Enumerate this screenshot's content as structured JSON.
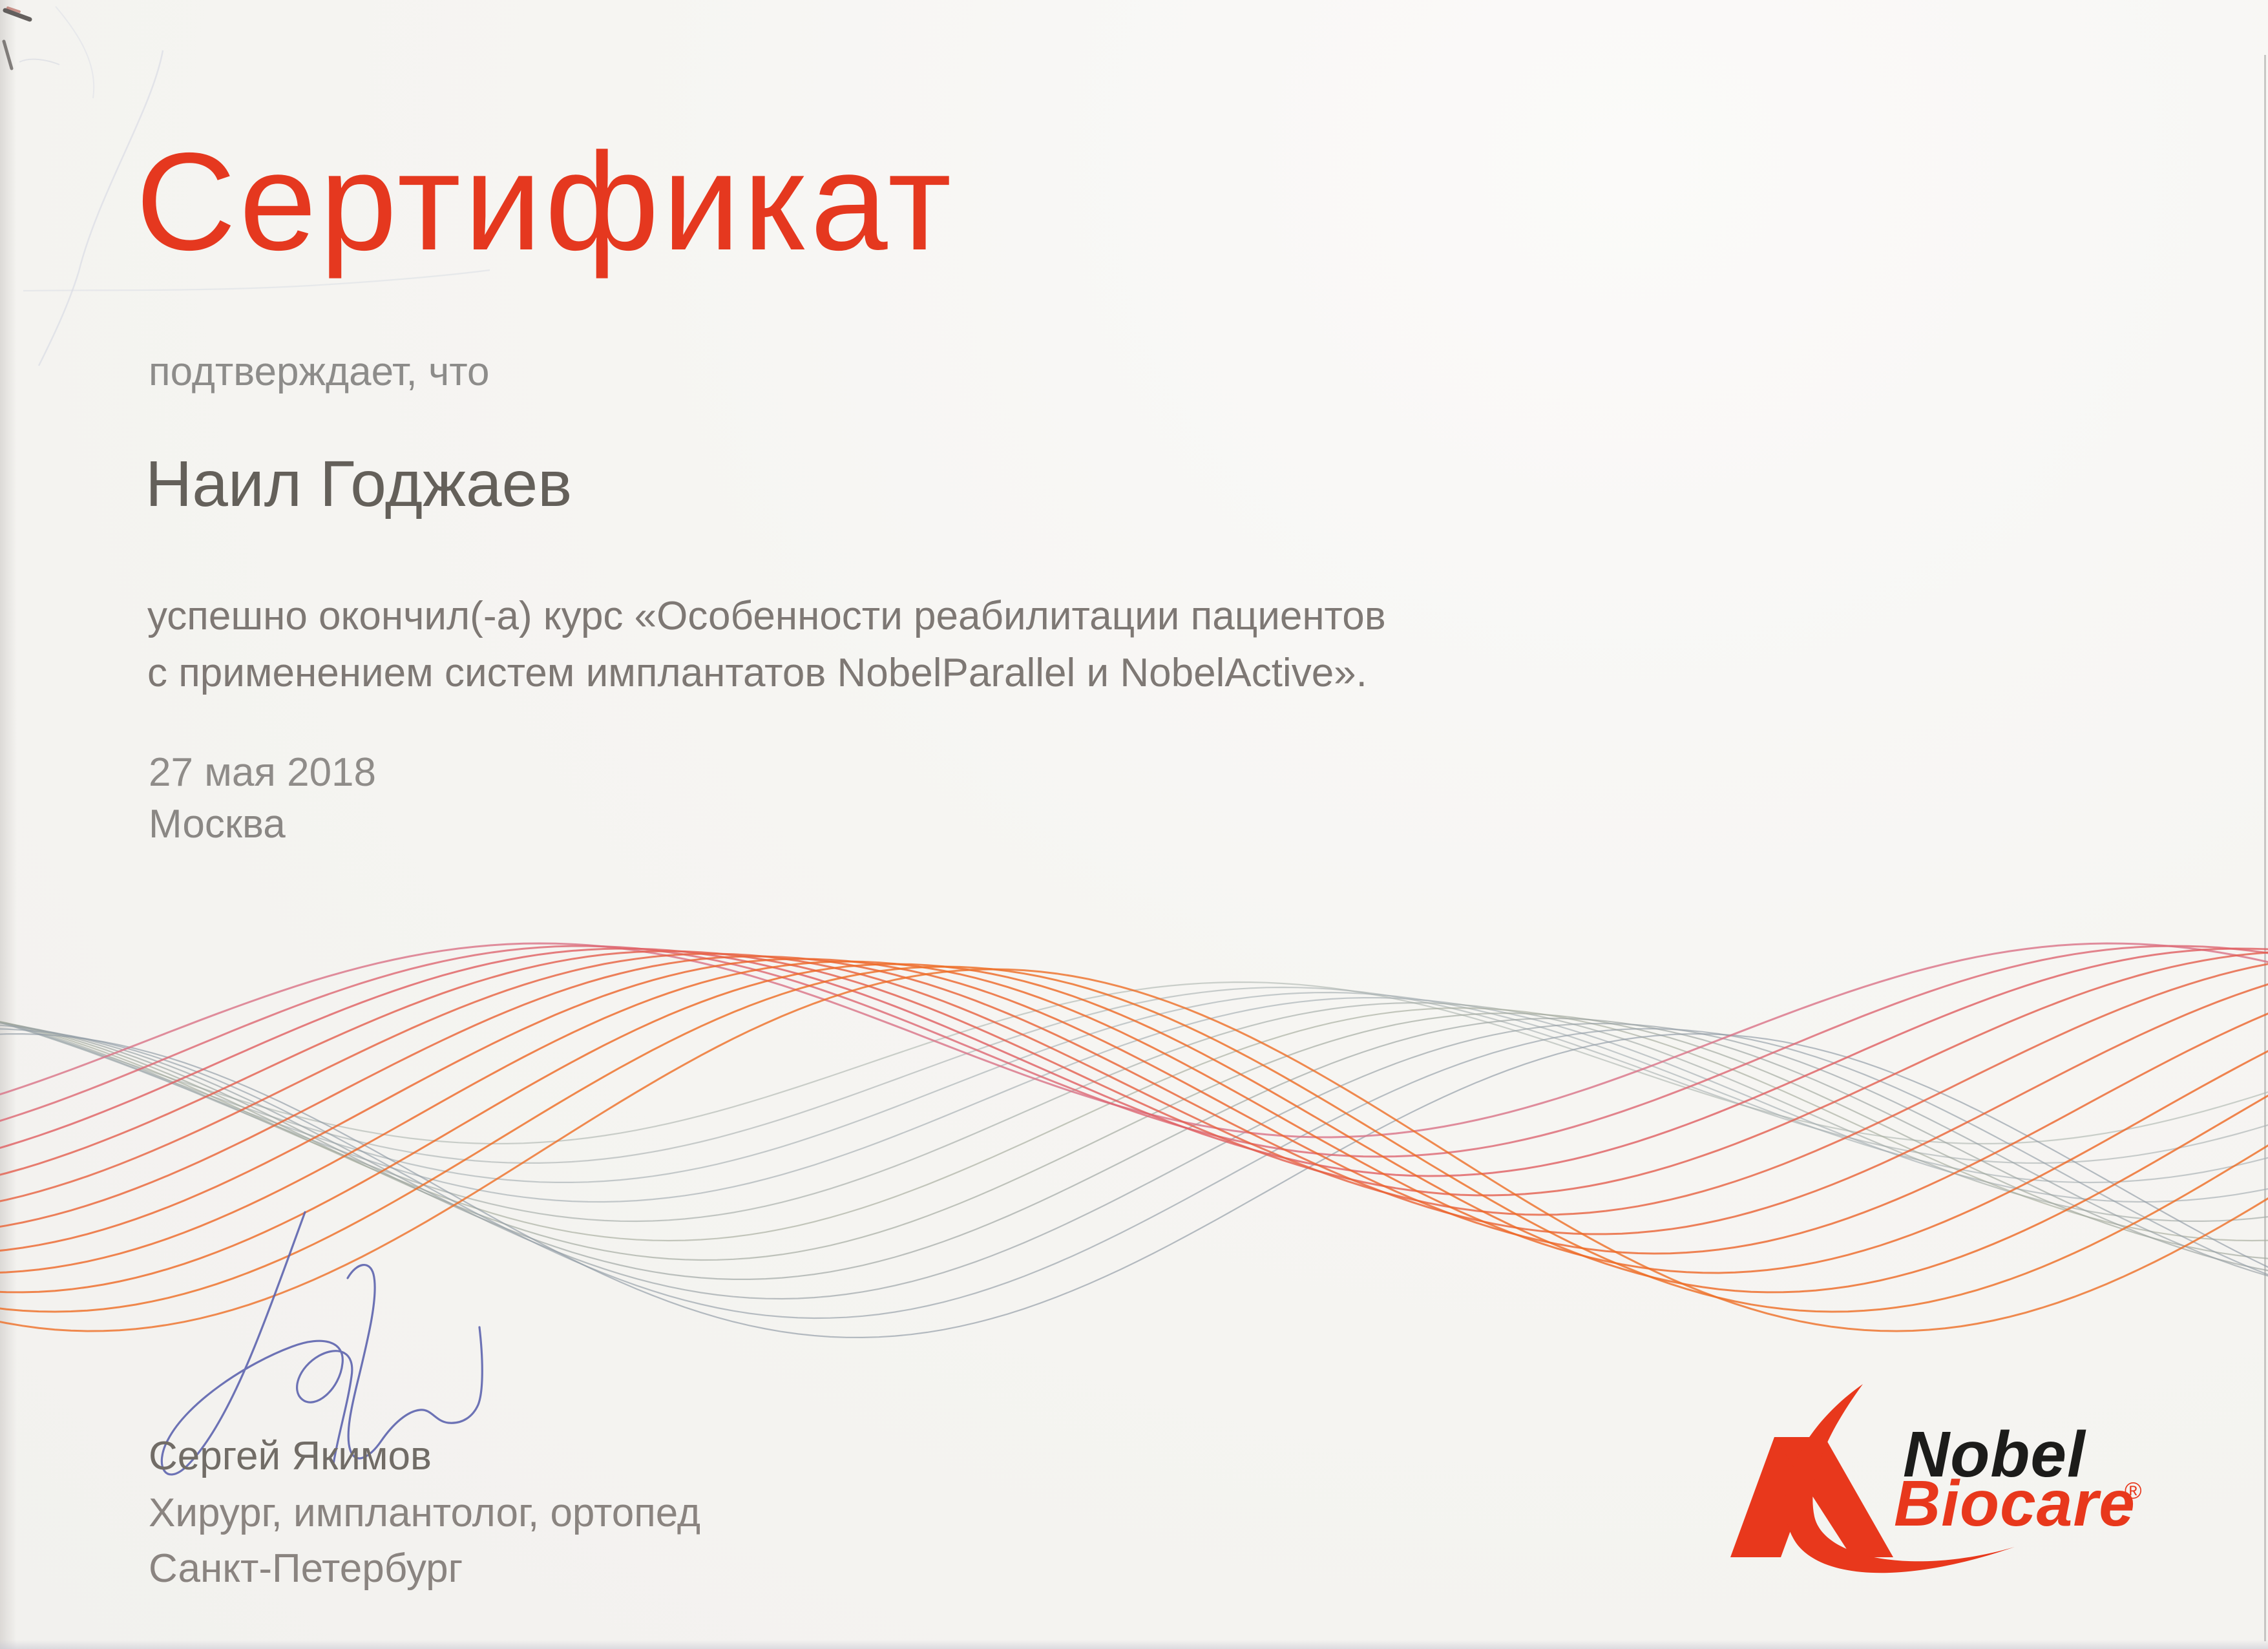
{
  "page": {
    "background": "#f5f4f2",
    "accent_red": "#e5381f"
  },
  "title": {
    "text": "Сертификат",
    "color": "#e5381f"
  },
  "confirmation": "подтверждает, что",
  "recipient": "Наил Годжаев",
  "course": {
    "line1": "успешно окончил(-а) курс «Особенности реабилитации пациентов",
    "line2": "с применением систем имплантатов NobelParallel и NobelActive»."
  },
  "event": {
    "date": "27 мая 2018",
    "city": "Москва"
  },
  "signer": {
    "name": "Сергей Якимов",
    "title": "Хирург, имплантолог, ортопед",
    "city": "Санкт-Петербург"
  },
  "logo": {
    "word1": "Nobel",
    "word2": "Biocare",
    "registered": "®",
    "red": "#e8381c",
    "black": "#1c1c1a"
  },
  "signature_ink": "#5d64ae",
  "waves": {
    "red": [
      "#d97286",
      "#dd6672",
      "#e05e60",
      "#e45e4e",
      "#e7603f",
      "#ea6233",
      "#ec642b",
      "#ed6626",
      "#ee6823",
      "#ee6b22",
      "#ed6e26"
    ],
    "gray": [
      "#b0b8b2",
      "#acb4b3",
      "#a8b1b3",
      "#a5aeb2",
      "#a4aca8",
      "#a6ac9d",
      "#a0a89c",
      "#9ba3a0",
      "#97a0a5",
      "#939ea7",
      "#8f9aa5"
    ]
  }
}
